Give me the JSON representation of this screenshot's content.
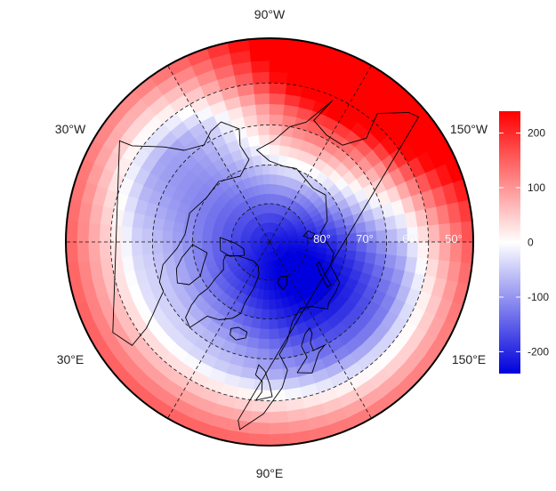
{
  "map": {
    "projection": "north polar stereographic",
    "center_latitude": 90,
    "southern_boundary_latitude": 40,
    "coastlines": "shown in black",
    "country_borders": "shown in black",
    "graticule": "dashed"
  },
  "longitude_labels": {
    "top": "90°W",
    "bottom": "90°E",
    "upper_left": "30°W",
    "upper_right": "150°W",
    "lower_left": "30°E",
    "lower_right": "150°E"
  },
  "latitude_labels": [
    "80°",
    "70°",
    "60°",
    "50°"
  ],
  "colorbar": {
    "ticks": [
      200,
      100,
      0,
      -100,
      -200
    ],
    "tick_labels": [
      "200",
      "100",
      "0",
      "-100",
      "-200"
    ],
    "range": [
      -240,
      240
    ],
    "colors": {
      "low": "#0000dd",
      "mid": "#ffffff",
      "high": "#ff0000"
    }
  },
  "field": {
    "description_scale": "diverging blue-white-red",
    "minimum_approx": -230,
    "maximum_approx": 240,
    "high_region": "Alaska / Gulf of Alaska",
    "low_region": "central Arctic / Laptev Sea"
  }
}
